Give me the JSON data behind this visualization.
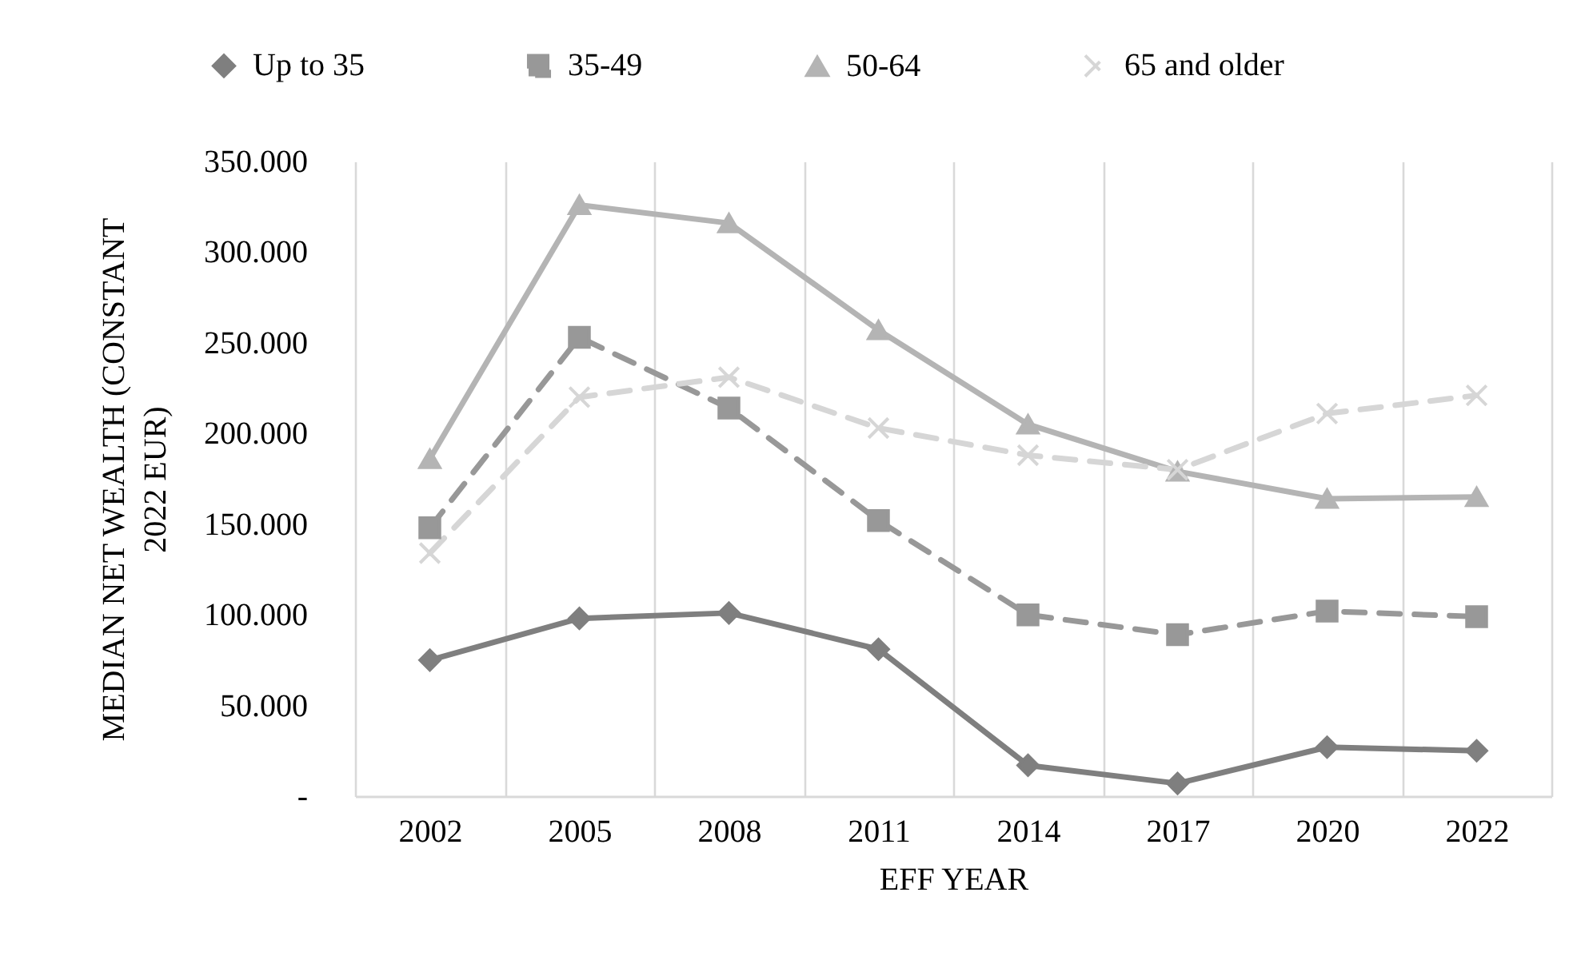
{
  "chart_data": {
    "type": "line",
    "xlabel": "EFF YEAR",
    "ylabel": "MEDIAN NET WEALTH (CONSTANT 2022 EUR)",
    "categories": [
      "2002",
      "2005",
      "2008",
      "2011",
      "2014",
      "2017",
      "2020",
      "2022"
    ],
    "series": [
      {
        "name": "Up to 35",
        "color": "#7f7f7f",
        "marker": "diamond",
        "line_style": "solid",
        "values": [
          75000,
          98000,
          101000,
          81000,
          17000,
          7000,
          27000,
          25000
        ]
      },
      {
        "name": "35-49",
        "color": "#989898",
        "marker": "square",
        "line_style": "dashed",
        "values": [
          148000,
          253000,
          214000,
          152000,
          100000,
          89000,
          102000,
          99000
        ]
      },
      {
        "name": "50-64",
        "color": "#b4b4b4",
        "marker": "triangle",
        "line_style": "solid",
        "values": [
          186000,
          326000,
          316000,
          257000,
          205000,
          179000,
          164000,
          165000
        ]
      },
      {
        "name": "65 and older",
        "color": "#d6d6d6",
        "marker": "cross",
        "line_style": "dashed",
        "values": [
          134000,
          220000,
          231000,
          203000,
          188000,
          180000,
          211000,
          221000
        ]
      }
    ],
    "ylim": [
      0,
      350000
    ],
    "yticks": [
      {
        "value": 0,
        "label": "-"
      },
      {
        "value": 50000,
        "label": "50.000"
      },
      {
        "value": 100000,
        "label": "100.000"
      },
      {
        "value": 150000,
        "label": "150.000"
      },
      {
        "value": 200000,
        "label": "200.000"
      },
      {
        "value": 250000,
        "label": "250.000"
      },
      {
        "value": 300000,
        "label": "300.000"
      },
      {
        "value": 350000,
        "label": "350.000"
      }
    ],
    "grid": "x",
    "legend": "top"
  }
}
